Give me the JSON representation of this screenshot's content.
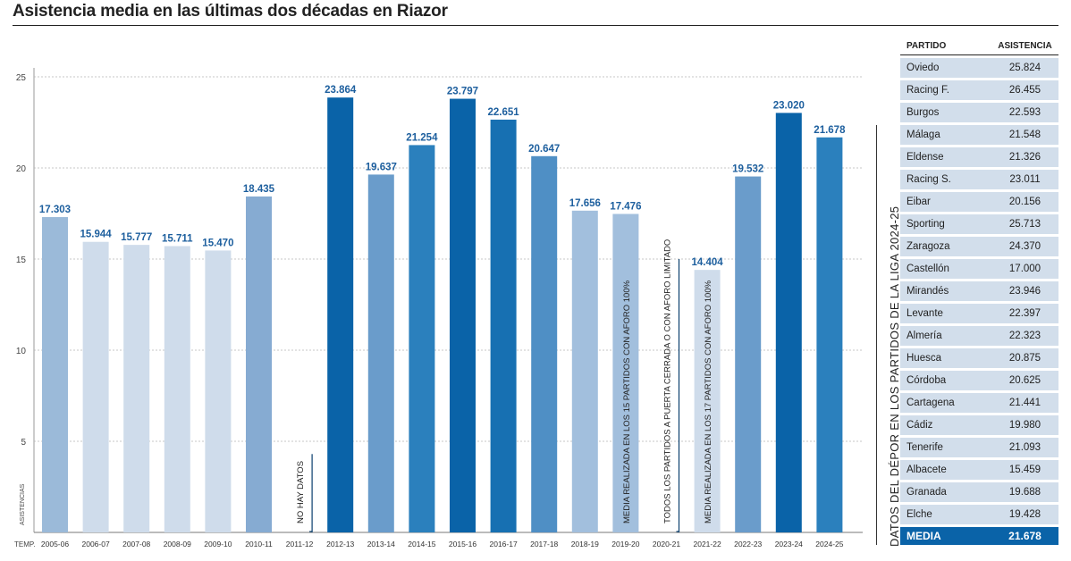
{
  "title": "Asistencia media en las últimas dos décadas en Riazor",
  "chart_data": {
    "type": "bar",
    "categories": [
      "2005-06",
      "2006-07",
      "2007-08",
      "2008-09",
      "2009-10",
      "2010-11",
      "2011-12",
      "2012-13",
      "2013-14",
      "2014-15",
      "2015-16",
      "2016-17",
      "2017-18",
      "2018-19",
      "2019-20",
      "2020-21",
      "2021-22",
      "2022-23",
      "2023-24",
      "2024-25"
    ],
    "values": [
      17.303,
      15.944,
      15.777,
      15.711,
      15.47,
      18.435,
      null,
      23.864,
      19.637,
      21.254,
      23.797,
      22.651,
      20.647,
      17.656,
      17.476,
      null,
      14.404,
      19.532,
      23.02,
      21.678
    ],
    "value_labels": [
      "17.303",
      "15.944",
      "15.777",
      "15.711",
      "15.470",
      "18.435",
      "",
      "23.864",
      "19.637",
      "21.254",
      "23.797",
      "22.651",
      "20.647",
      "17.656",
      "17.476",
      "",
      "14.404",
      "19.532",
      "23.020",
      "21.678"
    ],
    "bar_colors": [
      "#9bbad9",
      "#cfdceb",
      "#cfdceb",
      "#cfdceb",
      "#cfdceb",
      "#86abd2",
      "#cfdceb",
      "#0a63a8",
      "#6a9ccb",
      "#2b80bd",
      "#0a63a8",
      "#1770b2",
      "#4f8fc5",
      "#a2bfdd",
      "#a2bfdd",
      "#cfdceb",
      "#cfdceb",
      "#6a9ccb",
      "#0a63a8",
      "#2b80bd"
    ],
    "ylim": [
      0,
      25
    ],
    "yticks": [
      "5",
      "10",
      "15",
      "20",
      "25"
    ],
    "ylabel": "ASISTENCIAS",
    "xlabel": "TEMP.",
    "grid": true,
    "annotations": [
      {
        "category": "2011-12",
        "text": "NO HAY DATOS",
        "line_top": 4.3
      },
      {
        "category": "2019-20",
        "text": "MEDIA REALIZADA EN LOS 15 PARTIDOS CON AFORO 100%"
      },
      {
        "category": "2020-21",
        "text": "TODOS LOS PARTIDOS A PUERTA CERRADA O CON AFORO LIMITADO",
        "line_top": 15.0
      },
      {
        "category": "2021-22",
        "text": "MEDIA REALIZADA EN LOS 17 PARTIDOS CON AFORO 100%"
      }
    ]
  },
  "side_label": "DATOS DEL DÉPOR EN LOS PARTIDOS DE LA LIGA 2024-25",
  "table": {
    "header": [
      "PARTIDO",
      "ASISTENCIA"
    ],
    "rows": [
      [
        "Oviedo",
        "25.824"
      ],
      [
        "Racing F.",
        "26.455"
      ],
      [
        "Burgos",
        "22.593"
      ],
      [
        "Málaga",
        "21.548"
      ],
      [
        "Eldense",
        "21.326"
      ],
      [
        "Racing S.",
        "23.011"
      ],
      [
        "Eibar",
        "20.156"
      ],
      [
        "Sporting",
        "25.713"
      ],
      [
        "Zaragoza",
        "24.370"
      ],
      [
        "Castellón",
        "17.000"
      ],
      [
        "Mirandés",
        "23.946"
      ],
      [
        "Levante",
        "22.397"
      ],
      [
        "Almería",
        "22.323"
      ],
      [
        "Huesca",
        "20.875"
      ],
      [
        "Córdoba",
        "20.625"
      ],
      [
        "Cartagena",
        "21.441"
      ],
      [
        "Cádiz",
        "19.980"
      ],
      [
        "Tenerife",
        "21.093"
      ],
      [
        "Albacete",
        "15.459"
      ],
      [
        "Granada",
        "19.688"
      ],
      [
        "Elche",
        "19.428"
      ]
    ],
    "footer": [
      "MEDIA",
      "21.678"
    ]
  }
}
